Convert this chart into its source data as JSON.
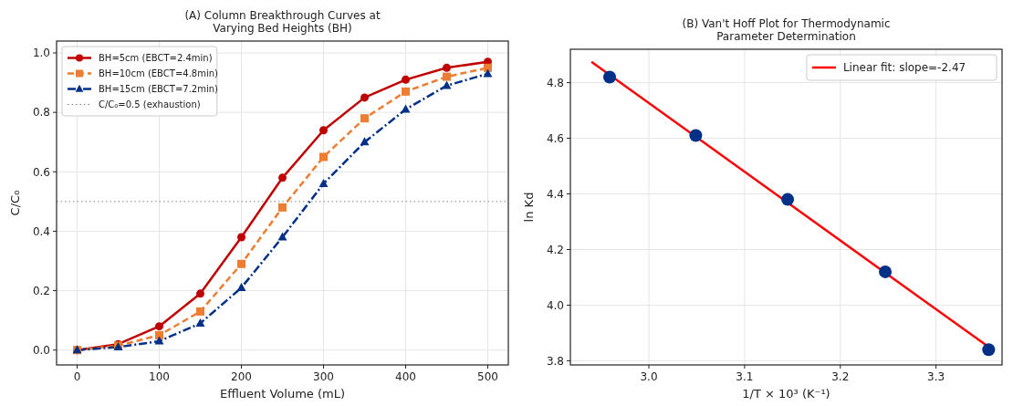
{
  "chart_data": [
    {
      "type": "line",
      "title": "(A) Column Breakthrough Curves at\nVarying Bed Heights (BH)",
      "xlabel": "Effluent Volume (mL)",
      "ylabel": "C/C₀",
      "x": [
        0,
        50,
        100,
        150,
        200,
        250,
        300,
        350,
        400,
        450,
        500
      ],
      "xlim": [
        -25,
        525
      ],
      "xticks": [
        0,
        100,
        200,
        300,
        400,
        500
      ],
      "ylim": [
        -0.05,
        1.04
      ],
      "yticks": [
        {
          "value": 0,
          "label": "0.0"
        },
        0.2,
        0.4,
        0.6,
        0.8,
        {
          "value": 1,
          "label": "1.0"
        }
      ],
      "grid": true,
      "legend": "top left",
      "series": [
        {
          "name": "BH=5cm (EBCT=2.4min)",
          "color": "#c00000",
          "marker": "circle",
          "line_style": "solid",
          "values": [
            0,
            0.02,
            0.08,
            0.19,
            0.38,
            0.58,
            0.74,
            0.85,
            0.91,
            0.95,
            0.97
          ]
        },
        {
          "name": "BH=10cm (EBCT=4.8min)",
          "color": "#ed7d31",
          "marker": "square",
          "line_style": "dashed",
          "values": [
            0,
            0.015,
            0.05,
            0.13,
            0.29,
            0.48,
            0.65,
            0.78,
            0.87,
            0.92,
            0.95
          ]
        },
        {
          "name": "BH=15cm (EBCT=7.2min)",
          "color": "#003087",
          "marker": "triangle",
          "line_style": "dashdot",
          "values": [
            0,
            0.01,
            0.03,
            0.09,
            0.21,
            0.38,
            0.56,
            0.7,
            0.81,
            0.89,
            0.93
          ]
        }
      ],
      "ref_lines": [
        {
          "axis": "y",
          "value": 0.5,
          "label": "C/C₀=0.5 (exhaustion)",
          "color": "#808080",
          "line_style": "dotted"
        }
      ]
    },
    {
      "type": "scatter",
      "title": "(B) Van't Hoff Plot for Thermodynamic\nParameter Determination",
      "xlabel": "1/T × 10³ (K⁻¹)",
      "ylabel": "ln Kd",
      "xlim": [
        2.918,
        3.369
      ],
      "xticks": [
        {
          "value": 3,
          "label": "3.0"
        },
        3.1,
        3.2,
        3.3
      ],
      "ylim": [
        3.785,
        4.92
      ],
      "yticks": [
        3.8,
        {
          "value": 4,
          "label": "4.0"
        },
        4.2,
        4.4,
        4.6,
        4.8
      ],
      "grid": true,
      "legend": "top right",
      "series": [
        {
          "color": "#003087",
          "marker": "circle",
          "x": [
            2.959,
            3.049,
            3.145,
            3.247,
            3.355
          ],
          "values": [
            4.82,
            4.61,
            4.38,
            4.12,
            3.84
          ]
        },
        {
          "type": "line",
          "name": "Linear fit: slope=-2.47",
          "color": "#ff0000",
          "marker": "none",
          "line_style": "solid",
          "x": [
            2.94,
            3.356
          ],
          "values": [
            4.875,
            3.847
          ]
        }
      ]
    }
  ]
}
